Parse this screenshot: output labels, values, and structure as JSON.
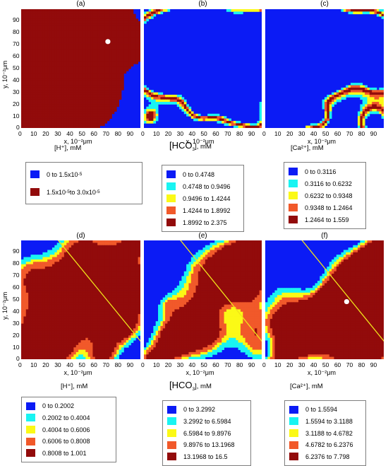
{
  "colors": {
    "blue": "#0b1bf5",
    "cyan": "#19f4f2",
    "yellow": "#fbf916",
    "orange": "#f1592a",
    "darkred": "#920b0b",
    "line": "#f0e31a"
  },
  "panels": [
    {
      "label": "(a)",
      "quantity": "[H⁺], mM",
      "legend": [
        {
          "text": "0  to 1.5x10",
          "sup": "-5",
          "color": "blue"
        },
        {
          "text": "1.5x10",
          "sup": "-5",
          "text2": " to  3.0x10",
          "sup2": "-5",
          "color": "darkred"
        }
      ]
    },
    {
      "label": "(b)",
      "quantity_pre": "[",
      "quantity_hco": "HCO",
      "quantity_sub": "3",
      "quantity_post": "], mM",
      "legend": [
        {
          "text": "0  to  0.4748",
          "color": "blue"
        },
        {
          "text": "0.4748  to  0.9496",
          "color": "cyan"
        },
        {
          "text": "0.9496  to  1.4244",
          "color": "yellow"
        },
        {
          "text": "1.4244  to  1.8992",
          "color": "orange"
        },
        {
          "text": "1.8992  to  2.375",
          "color": "darkred"
        }
      ]
    },
    {
      "label": "(c)",
      "quantity": "[Ca²⁺], mM",
      "legend": [
        {
          "text": "0  to  0.3116",
          "color": "blue"
        },
        {
          "text": "0.3116  to  0.6232",
          "color": "cyan"
        },
        {
          "text": "0.6232  to  0.9348",
          "color": "yellow"
        },
        {
          "text": "0.9348  to  1.2464",
          "color": "orange"
        },
        {
          "text": "1.2464  to  1.559",
          "color": "darkred"
        }
      ]
    },
    {
      "label": "(d)",
      "quantity": "[H⁺], mM",
      "legend": [
        {
          "text": "0  to  0.2002",
          "color": "blue"
        },
        {
          "text": "0.2002  to  0.4004",
          "color": "cyan"
        },
        {
          "text": "0.4004  to  0.6006",
          "color": "yellow"
        },
        {
          "text": "0.6006  to  0.8008",
          "color": "orange"
        },
        {
          "text": "0.8008  to  1.001",
          "color": "darkred"
        }
      ]
    },
    {
      "label": "(e)",
      "quantity_pre": "[",
      "quantity_hco": "HCO",
      "quantity_sub": "3",
      "quantity_post": "], mM",
      "legend": [
        {
          "text": "0  to  3.2992",
          "color": "blue"
        },
        {
          "text": "3.2992  to  6.5984",
          "color": "cyan"
        },
        {
          "text": "6.5984  to  9.8976",
          "color": "yellow"
        },
        {
          "text": "9.8976  to  13.1968",
          "color": "orange"
        },
        {
          "text": "13.1968  to  16.5",
          "color": "darkred"
        }
      ]
    },
    {
      "label": "(f)",
      "quantity": "[Ca²⁺], mM",
      "legend": [
        {
          "text": "0  to  1.5594",
          "color": "blue"
        },
        {
          "text": "1.5594  to  3.1188",
          "color": "cyan"
        },
        {
          "text": "3.1188  to  4.6782",
          "color": "yellow"
        },
        {
          "text": "4.6782  to  6.2376",
          "color": "orange"
        },
        {
          "text": "6.2376  to  7.798",
          "color": "darkred"
        }
      ]
    }
  ],
  "axes": {
    "xlabel": "x, 10⁻²μm",
    "ylabel": "y, 10⁻²μm",
    "ticks": [
      "0",
      "10",
      "20",
      "30",
      "40",
      "50",
      "60",
      "70",
      "80",
      "90"
    ]
  },
  "chart_data": {
    "type": "heatmap",
    "grid": false,
    "xlim": [
      0,
      99
    ],
    "ylim": [
      0,
      99
    ],
    "panels": [
      {
        "id": "a",
        "classes": 2,
        "marker": [
          72,
          72
        ]
      },
      {
        "id": "b",
        "classes": 5
      },
      {
        "id": "c",
        "classes": 5
      },
      {
        "id": "d",
        "classes": 5,
        "line": [
          [
            30,
            100
          ],
          [
            100,
            14
          ]
        ]
      },
      {
        "id": "e",
        "classes": 5,
        "line": [
          [
            30,
            100
          ],
          [
            100,
            14
          ]
        ]
      },
      {
        "id": "f",
        "classes": 5,
        "line": [
          [
            30,
            100
          ],
          [
            100,
            14
          ]
        ],
        "marker": [
          68,
          48
        ]
      }
    ]
  }
}
